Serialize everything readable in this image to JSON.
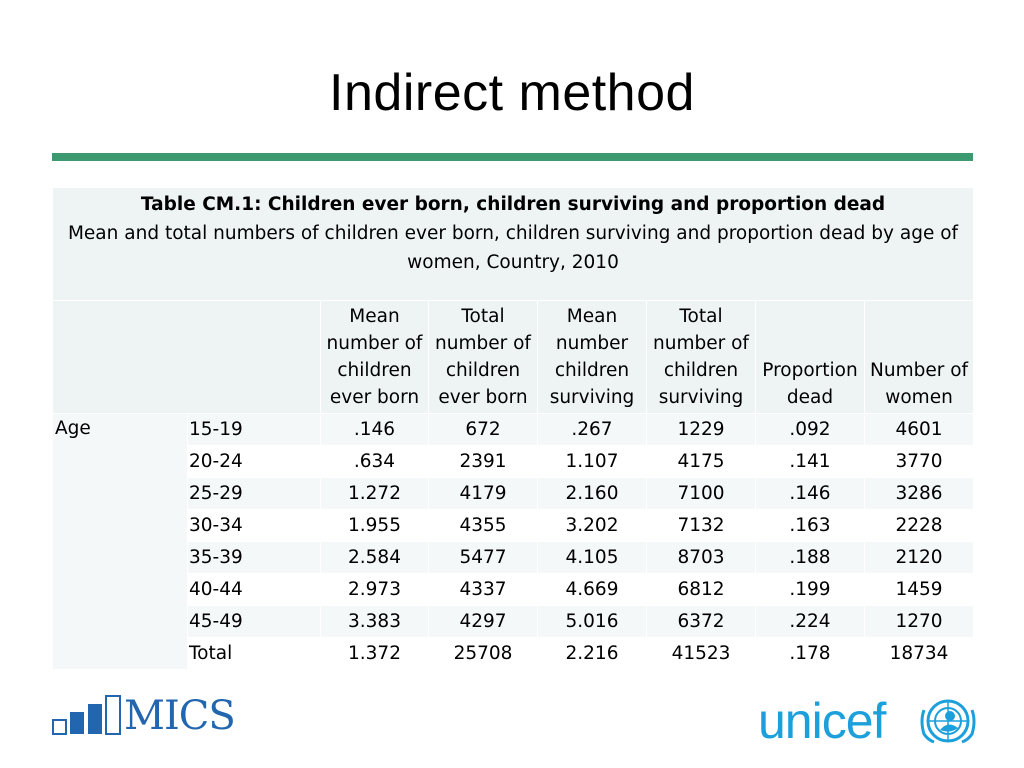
{
  "slide": {
    "title": "Indirect method"
  },
  "table": {
    "caption_title": "Table CM.1: Children ever born, children surviving and proportion dead",
    "caption_subtitle": "Mean and total numbers of children ever born, children surviving and proportion dead by age of women, Country, 2010",
    "headers": [
      "Mean number of children ever born",
      "Total number of children ever born",
      "Mean number children surviving",
      "Total number of children surviving",
      "Proportion dead",
      "Number of women"
    ],
    "group_label": "Age",
    "rows": [
      {
        "label": "15-19",
        "values": [
          ".146",
          "672",
          ".267",
          "1229",
          ".092",
          "4601"
        ]
      },
      {
        "label": "20-24",
        "values": [
          ".634",
          "2391",
          "1.107",
          "4175",
          ".141",
          "3770"
        ]
      },
      {
        "label": "25-29",
        "values": [
          "1.272",
          "4179",
          "2.160",
          "7100",
          ".146",
          "3286"
        ]
      },
      {
        "label": "30-34",
        "values": [
          "1.955",
          "4355",
          "3.202",
          "7132",
          ".163",
          "2228"
        ]
      },
      {
        "label": "35-39",
        "values": [
          "2.584",
          "5477",
          "4.105",
          "8703",
          ".188",
          "2120"
        ]
      },
      {
        "label": "40-44",
        "values": [
          "2.973",
          "4337",
          "4.669",
          "6812",
          ".199",
          "1459"
        ]
      },
      {
        "label": "45-49",
        "values": [
          "3.383",
          "4297",
          "5.016",
          "6372",
          ".224",
          "1270"
        ]
      },
      {
        "label": "Total",
        "values": [
          "1.372",
          "25708",
          "2.216",
          "41523",
          ".178",
          "18734"
        ]
      }
    ]
  },
  "logos": {
    "mics": "MICS",
    "unicef": "unicef",
    "mics_color": "#2266b0",
    "unicef_color": "#1ca0dc",
    "rule_color": "#3d9970"
  }
}
